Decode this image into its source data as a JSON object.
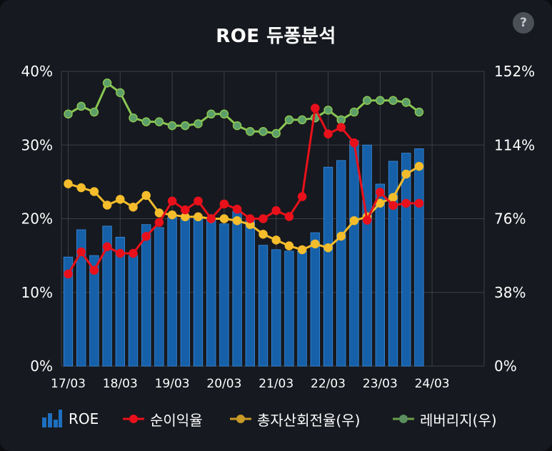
{
  "chart_data": {
    "type": "bar+line",
    "title": "ROE 듀퐁분석",
    "help_label": "?",
    "x_labels": [
      "17/03",
      "18/03",
      "19/03",
      "20/03",
      "21/03",
      "22/03",
      "23/03",
      "24/03"
    ],
    "y_left_ticks": [
      "0%",
      "10%",
      "20%",
      "30%",
      "40%"
    ],
    "y_right_ticks": [
      "0%",
      "38%",
      "76%",
      "114%",
      "152%"
    ],
    "ylim_left": [
      0,
      40
    ],
    "ylim_right": [
      0,
      152
    ],
    "grid": true,
    "quarters": [
      "17/03",
      "17/06",
      "17/09",
      "17/12",
      "18/03",
      "18/06",
      "18/09",
      "18/12",
      "19/03",
      "19/06",
      "19/09",
      "19/12",
      "20/03",
      "20/06",
      "20/09",
      "20/12",
      "21/03",
      "21/06",
      "21/09",
      "21/12",
      "22/03",
      "22/06",
      "22/09",
      "22/12",
      "23/03",
      "23/06",
      "23/09",
      "23/12"
    ],
    "series": [
      {
        "name": "ROE",
        "axis": "left",
        "kind": "bar",
        "color": "#1560a8",
        "values": [
          14.8,
          18.5,
          15.0,
          19.0,
          17.5,
          15.0,
          19.2,
          18.8,
          20.2,
          20.0,
          20.1,
          20.0,
          19.3,
          21.0,
          19.8,
          16.4,
          15.8,
          15.6,
          15.6,
          18.1,
          27.0,
          27.9,
          30.6,
          30.0,
          24.7,
          27.8,
          28.9,
          29.5
        ]
      },
      {
        "name": "순이익율",
        "axis": "left",
        "kind": "line",
        "color": "#e8111b",
        "values": [
          12.5,
          15.5,
          13.0,
          16.2,
          15.3,
          15.3,
          17.6,
          19.5,
          22.4,
          21.2,
          22.4,
          20.0,
          22.0,
          21.3,
          20.0,
          20.0,
          21.1,
          20.3,
          23.0,
          35.0,
          31.5,
          32.4,
          30.3,
          19.8,
          23.6,
          21.8,
          22.1,
          22.1
        ]
      },
      {
        "name": "총자산회전율(우)",
        "axis": "right",
        "kind": "line",
        "color": "#f5bd2c",
        "values": [
          94,
          92,
          90,
          83,
          86,
          82,
          88,
          79,
          78,
          77,
          77,
          76,
          76,
          75,
          73,
          68,
          65,
          62,
          60,
          63,
          61,
          67,
          75,
          77,
          84,
          87,
          99,
          103
        ]
      },
      {
        "name": "레버리지(우)",
        "axis": "right",
        "kind": "line",
        "color": "#8ac653",
        "values": [
          130,
          134,
          131,
          146,
          141,
          128,
          126,
          126,
          124,
          124,
          125,
          130,
          130,
          124,
          121,
          121,
          120,
          127,
          127,
          128,
          132,
          127,
          131,
          137,
          137,
          137,
          136,
          131
        ]
      }
    ]
  }
}
